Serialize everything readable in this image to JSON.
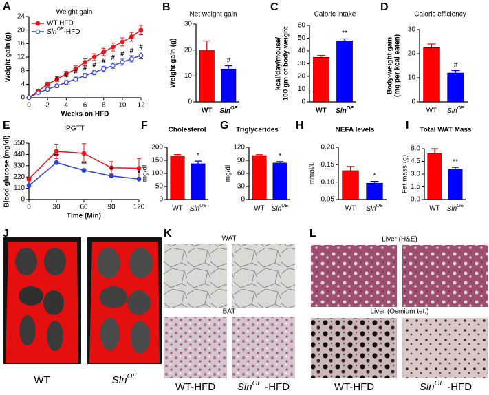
{
  "chart_data": [
    {
      "type": "line",
      "panel": "A",
      "title": "Weight gain",
      "xlabel": "Weeks on HFD",
      "ylabel": [
        "Weight gain (g)"
      ],
      "x": [
        0,
        1,
        2,
        3,
        4,
        5,
        6,
        7,
        8,
        9,
        10,
        11,
        12
      ],
      "xlim": [
        0,
        12
      ],
      "xticks": [
        0,
        2,
        4,
        6,
        8,
        10,
        12
      ],
      "ylim": [
        0,
        24
      ],
      "yticks": [
        0,
        4,
        8,
        12,
        16,
        20,
        24
      ],
      "legend": "upper left",
      "series": [
        {
          "name": "WT HFD",
          "color": "#e8141c",
          "marker": "filled",
          "values": [
            0,
            2,
            4,
            5.5,
            7,
            8.5,
            10.5,
            12,
            13.5,
            15,
            16.5,
            18,
            20
          ],
          "errors": [
            0,
            0.4,
            0.6,
            0.7,
            0.8,
            0.9,
            1,
            1,
            1.1,
            1.2,
            1.2,
            1.3,
            1.4
          ],
          "sig": [
            null,
            null,
            null,
            null,
            null,
            null,
            null,
            null,
            null,
            null,
            null,
            null,
            null
          ]
        },
        {
          "name": {
            "text": "Sln",
            "sup": "OE",
            "after": "-HFD"
          },
          "color": "#3246d2",
          "marker": "open",
          "values": [
            0,
            1.5,
            2.5,
            3.5,
            4.5,
            5.5,
            6.5,
            7.5,
            8.5,
            9.5,
            10.5,
            11.5,
            12.5
          ],
          "errors": [
            0,
            0.3,
            0.4,
            0.5,
            0.6,
            0.6,
            0.7,
            0.7,
            0.8,
            0.8,
            0.9,
            0.9,
            1
          ],
          "sig": [
            null,
            null,
            null,
            "#",
            "#",
            "#",
            "#",
            "#",
            "#",
            "#",
            "#",
            "#",
            "#"
          ]
        }
      ]
    },
    {
      "type": "bar",
      "panel": "B",
      "title": "Net weight gain",
      "ylabel": [
        "Weight gain (g)"
      ],
      "categories": [
        "WT",
        {
          "text": "Sln",
          "sup": "OE"
        }
      ],
      "values": [
        20,
        12.7
      ],
      "errors": [
        3.5,
        1.2
      ],
      "sig": [
        null,
        "#"
      ],
      "colors": [
        "#ff0000",
        "#0000ff"
      ],
      "ylim": [
        0,
        30
      ],
      "yticks": [
        0,
        10,
        20,
        30
      ]
    },
    {
      "type": "bar",
      "panel": "C",
      "title": "Caloric intake",
      "ylabel": [
        "kcal/day/mouse/",
        "100 gm of body weight"
      ],
      "categories": [
        "WT",
        {
          "text": "Sln",
          "sup": "OE"
        }
      ],
      "values": [
        35,
        48
      ],
      "errors": [
        1.5,
        1.5
      ],
      "sig": [
        null,
        "**"
      ],
      "colors": [
        "#ff0000",
        "#0000ff"
      ],
      "ylim": [
        0,
        60
      ],
      "yticks": [
        0,
        10,
        20,
        30,
        40,
        50,
        60
      ]
    },
    {
      "type": "bar",
      "panel": "D",
      "title": "Caloric efficiency",
      "ylabel": [
        "Body-weight gain",
        "(mg per kcal eaten)"
      ],
      "categories": [
        "WT",
        {
          "text": "Sln",
          "sup": "OE"
        }
      ],
      "values": [
        22.5,
        12
      ],
      "errors": [
        1.5,
        1
      ],
      "sig": [
        null,
        "#"
      ],
      "colors": [
        "#ff0000",
        "#0000ff"
      ],
      "ylim": [
        0,
        30
      ],
      "yticks": [
        0,
        10,
        20,
        30
      ]
    },
    {
      "type": "line",
      "panel": "E",
      "title": "IPGTT",
      "xlabel": "Time (Min)",
      "ylabel": [
        "Blood glucose (mg/dl)"
      ],
      "x": [
        0,
        30,
        60,
        90,
        120
      ],
      "xlim": [
        0,
        120
      ],
      "xticks": [
        0,
        30,
        60,
        90,
        120
      ],
      "ylim": [
        0,
        550
      ],
      "yticks": [
        0,
        110,
        220,
        330,
        440,
        550
      ],
      "series": [
        {
          "name": "WT HFD",
          "color": "#e8141c",
          "marker": "filled",
          "values": [
            200,
            470,
            450,
            310,
            305
          ],
          "errors": [
            15,
            70,
            95,
            60,
            95
          ],
          "sig": [
            null,
            null,
            null,
            null,
            null
          ]
        },
        {
          "name": {
            "text": "Sln",
            "sup": "OE",
            "after": "-HFD"
          },
          "color": "#2b3fd1",
          "marker": "filled",
          "values": [
            135,
            360,
            285,
            230,
            200
          ],
          "errors": [
            8,
            12,
            15,
            12,
            10
          ],
          "sig": [
            null,
            "**",
            "**",
            "*",
            "*"
          ]
        }
      ]
    },
    {
      "type": "bar",
      "panel": "F",
      "title": "Cholesterol",
      "ylabel": [
        "mg/dl"
      ],
      "categories": [
        "WT",
        {
          "text": "Sln",
          "sup": "OE"
        }
      ],
      "values": [
        167,
        137
      ],
      "errors": [
        5,
        10
      ],
      "sig": [
        null,
        "*"
      ],
      "colors": [
        "#ff0000",
        "#0000ff"
      ],
      "ylim": [
        0,
        200
      ],
      "yticks": [
        0,
        50,
        100,
        150,
        200
      ]
    },
    {
      "type": "bar",
      "panel": "G",
      "title": "Triglycerides",
      "ylabel": [
        "mg/dl"
      ],
      "categories": [
        "WT",
        {
          "text": "Sln",
          "sup": "OE"
        }
      ],
      "values": [
        101,
        84
      ],
      "errors": [
        2,
        3
      ],
      "sig": [
        null,
        "*"
      ],
      "colors": [
        "#ff0000",
        "#0000ff"
      ],
      "ylim": [
        0,
        120
      ],
      "yticks": [
        0,
        30,
        60,
        90,
        120
      ]
    },
    {
      "type": "bar",
      "panel": "H",
      "title": "NEFA levels",
      "ylabel": [
        "mmol/L"
      ],
      "categories": [
        "WT",
        {
          "text": "Sln",
          "sup": "OE"
        }
      ],
      "values": [
        0.133,
        0.097
      ],
      "errors": [
        0.012,
        0.005
      ],
      "sig": [
        null,
        "*"
      ],
      "colors": [
        "#ff0000",
        "#0000ff"
      ],
      "ylim": [
        0.05,
        0.2
      ],
      "yticks": [
        {
          "value": 0.05,
          "label": "0.05"
        },
        {
          "value": 0.1,
          "label": "0.10"
        },
        {
          "value": 0.15,
          "label": "0.15"
        },
        {
          "value": 0.2,
          "label": "0.20"
        }
      ]
    },
    {
      "type": "bar",
      "panel": "I",
      "title": "Total WAT Mass",
      "ylabel": [
        "Fat mass (g)"
      ],
      "categories": [
        "WT",
        {
          "text": "Sln",
          "sup": "OE"
        }
      ],
      "values": [
        5.4,
        3.6
      ],
      "errors": [
        0.6,
        0.2
      ],
      "sig": [
        null,
        "**"
      ],
      "colors": [
        "#ff0000",
        "#0000ff"
      ],
      "ylim": [
        0,
        6
      ],
      "yticks": [
        {
          "value": 0,
          "label": "0.0"
        },
        {
          "value": 1.5,
          "label": "1.5"
        },
        {
          "value": 3,
          "label": "3.0"
        },
        {
          "value": 4.5,
          "label": "4.5"
        },
        {
          "value": 6,
          "label": "6.0"
        }
      ]
    }
  ],
  "image_panels": {
    "J": {
      "panel": "J",
      "labels": [
        "WT",
        {
          "text": "Sln",
          "sup": "OE"
        }
      ]
    },
    "K": {
      "panel": "K",
      "rows": [
        "WAT",
        "BAT"
      ],
      "labels": [
        "WT-HFD",
        {
          "text": "Sln",
          "sup": "OE",
          "after": " -HFD"
        }
      ]
    },
    "L": {
      "panel": "L",
      "rows": [
        "Liver (H&E)",
        "Liver (Osmium tet.)"
      ],
      "labels": [
        "WT-HFD",
        {
          "text": "Sln",
          "sup": "OE",
          "after": " -HFD"
        }
      ]
    }
  }
}
